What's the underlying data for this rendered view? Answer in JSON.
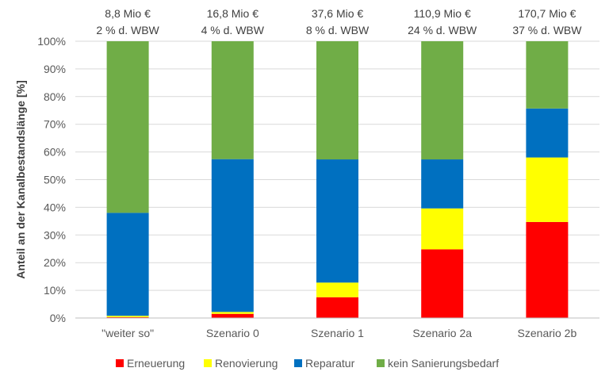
{
  "chart_data": {
    "type": "bar",
    "stacked": true,
    "percent": true,
    "categories": [
      "\"weiter so\"",
      "Szenario 0",
      "Szenario 1",
      "Szenario 2a",
      "Szenario 2b"
    ],
    "top_labels": [
      [
        "8,8 Mio €",
        "2 % d. WBW"
      ],
      [
        "16,8 Mio €",
        "4 % d. WBW"
      ],
      [
        "37,6 Mio €",
        "8 % d. WBW"
      ],
      [
        "110,9 Mio €",
        "24 % d. WBW"
      ],
      [
        "170,7 Mio €",
        "37 % d. WBW"
      ]
    ],
    "ylabel": "Anteil an der Kanalbestandslänge  [%]",
    "ylim": [
      0,
      100
    ],
    "yticks": [
      0,
      10,
      20,
      30,
      40,
      50,
      60,
      70,
      80,
      90,
      100
    ],
    "ytick_suffix": "%",
    "grid": true,
    "legend_position": "bottom",
    "series": [
      {
        "name": "Erneuerung",
        "color": "#ff0000",
        "values": [
          0.3,
          1.5,
          7.5,
          24.8,
          34.7
        ]
      },
      {
        "name": "Renovierung",
        "color": "#ffff00",
        "values": [
          0.5,
          0.7,
          5.3,
          14.8,
          23.3
        ]
      },
      {
        "name": "Reparatur",
        "color": "#0070c0",
        "values": [
          37.2,
          55.2,
          44.5,
          17.7,
          17.7
        ]
      },
      {
        "name": "kein Sanierungsbedarf",
        "color": "#70ad47",
        "values": [
          62.0,
          42.6,
          42.7,
          42.7,
          24.3
        ]
      }
    ]
  }
}
